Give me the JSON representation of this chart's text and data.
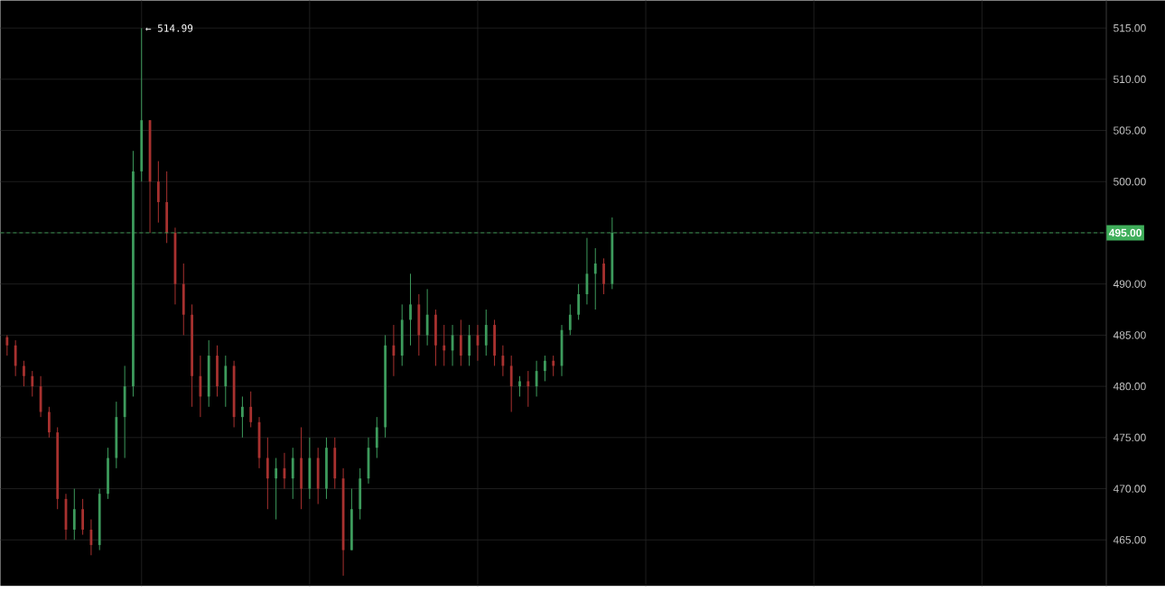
{
  "chart_data": {
    "type": "candlestick",
    "categories": [
      null,
      null,
      null,
      null,
      null,
      null,
      null,
      null,
      null,
      null,
      null,
      null,
      null,
      null,
      null,
      null,
      null,
      null,
      null,
      null,
      null,
      null,
      null,
      null,
      null,
      null,
      null,
      null,
      null,
      null,
      null,
      null,
      null,
      null,
      null,
      null,
      null,
      null,
      null,
      null,
      null,
      null,
      null,
      null,
      null,
      null,
      null,
      null,
      null,
      null,
      null,
      null,
      null,
      null,
      null,
      null,
      null,
      null,
      null,
      null,
      null,
      null,
      null,
      null,
      null,
      null,
      null,
      null,
      null,
      null,
      null,
      null,
      null,
      null,
      null,
      null,
      null,
      null,
      null,
      null,
      null,
      null,
      null,
      null,
      null,
      null,
      null,
      null,
      null,
      null,
      null,
      null,
      null,
      null,
      null,
      null,
      null,
      null,
      null,
      null,
      null,
      null,
      null,
      null,
      null,
      null,
      null,
      null,
      null,
      null,
      null,
      null,
      null,
      null,
      null,
      null,
      null,
      null,
      null,
      null,
      null,
      null,
      null,
      null,
      null,
      null,
      null,
      null,
      null,
      null,
      null
    ],
    "ohlc": [
      [
        484.8,
        485,
        483,
        484
      ],
      [
        484,
        484.5,
        481,
        482
      ],
      [
        482,
        482.5,
        480,
        481
      ],
      [
        481,
        481.5,
        479,
        480
      ],
      [
        480,
        481,
        477,
        477.5
      ],
      [
        477.5,
        478,
        475,
        475.5
      ],
      [
        475.5,
        476,
        468,
        469
      ],
      [
        469,
        469.5,
        465,
        466
      ],
      [
        466,
        470,
        465,
        468
      ],
      [
        468,
        469,
        465.5,
        466
      ],
      [
        466,
        467,
        463.5,
        464.5
      ],
      [
        464.5,
        470,
        464,
        469.5
      ],
      [
        469.5,
        474,
        469,
        473
      ],
      [
        473,
        478.5,
        472,
        477
      ],
      [
        477,
        482,
        473,
        480
      ],
      [
        480,
        503,
        479,
        501
      ],
      [
        501,
        514.99,
        500,
        506
      ],
      [
        506,
        506,
        495,
        500
      ],
      [
        500,
        502,
        496,
        498
      ],
      [
        498,
        501,
        494,
        495
      ],
      [
        495,
        495.5,
        488,
        490
      ],
      [
        490,
        492,
        485,
        487
      ],
      [
        487,
        488,
        478,
        481
      ],
      [
        481,
        483,
        477,
        479
      ],
      [
        479,
        484.5,
        478,
        483
      ],
      [
        483,
        484,
        479,
        480
      ],
      [
        480,
        483,
        478,
        482
      ],
      [
        482,
        482.5,
        476,
        477
      ],
      [
        477,
        479,
        475,
        478
      ],
      [
        478,
        479.5,
        476,
        476.5
      ],
      [
        476.5,
        477,
        472,
        473
      ],
      [
        473,
        475,
        468,
        471
      ],
      [
        471,
        473,
        467,
        472
      ],
      [
        472,
        473.5,
        470,
        471
      ],
      [
        471,
        474,
        469,
        473
      ],
      [
        473,
        476,
        468,
        470
      ],
      [
        470,
        475,
        469,
        473
      ],
      [
        473,
        474,
        468.5,
        470
      ],
      [
        470,
        475,
        469,
        474
      ],
      [
        474,
        475,
        470,
        471
      ],
      [
        471,
        472,
        461.5,
        464
      ],
      [
        464,
        470,
        464,
        468
      ],
      [
        468,
        472,
        467,
        471
      ],
      [
        471,
        475,
        470.5,
        474
      ],
      [
        474,
        477,
        473,
        476
      ],
      [
        476,
        485,
        475,
        484
      ],
      [
        484,
        486,
        481,
        483
      ],
      [
        483,
        488,
        482,
        486.5
      ],
      [
        486.5,
        491,
        484,
        488
      ],
      [
        488,
        489,
        483,
        485
      ],
      [
        485,
        489.5,
        484,
        487
      ],
      [
        487,
        487.5,
        482,
        484
      ],
      [
        484,
        486,
        482,
        483.5
      ],
      [
        483.5,
        486,
        482,
        485
      ],
      [
        485,
        486.5,
        482,
        483
      ],
      [
        483,
        486,
        482,
        485
      ],
      [
        485,
        486,
        482.5,
        484
      ],
      [
        484,
        487.5,
        483,
        486
      ],
      [
        486,
        486.5,
        482,
        483
      ],
      [
        483,
        484,
        481,
        482
      ],
      [
        482,
        483,
        477.5,
        480
      ],
      [
        480,
        481,
        479,
        480.5
      ],
      [
        480.5,
        481.5,
        478,
        480
      ],
      [
        480,
        482.5,
        479,
        481.5
      ],
      [
        481.5,
        483,
        480.5,
        482.5
      ],
      [
        482.5,
        483,
        481,
        482
      ],
      [
        482,
        486,
        481,
        485.5
      ],
      [
        485.5,
        488,
        485,
        487
      ],
      [
        487,
        490,
        486.5,
        489
      ],
      [
        489,
        494.5,
        488,
        491
      ],
      [
        491,
        493.5,
        487.5,
        492
      ],
      [
        492,
        492.5,
        489,
        490
      ],
      [
        490,
        496.5,
        489.5,
        495
      ],
      null,
      null,
      null,
      null,
      null,
      null,
      null,
      null,
      null,
      null,
      null,
      null,
      null,
      null,
      null,
      null,
      null,
      null,
      null,
      null,
      null,
      null,
      null,
      null,
      null,
      null,
      null,
      null,
      null,
      null,
      null,
      null,
      null,
      null,
      null,
      null,
      null,
      null,
      null,
      null,
      null,
      null,
      null,
      null,
      null,
      null,
      null,
      null,
      null,
      null,
      null,
      null,
      null,
      null,
      null,
      null,
      null,
      null
    ],
    "colors": [
      "#a8312f",
      "#a8312f",
      "#a8312f",
      "#a8312f",
      "#a8312f",
      "#a8312f",
      "#a8312f",
      "#a8312f",
      "#3d9b5c",
      "#a8312f",
      "#a8312f",
      "#3d9b5c",
      "#3d9b5c",
      "#3d9b5c",
      "#3d9b5c",
      "#3d9b5c",
      "#3d9b5c",
      "#a8312f",
      "#a8312f",
      "#a8312f",
      "#a8312f",
      "#a8312f",
      "#a8312f",
      "#a8312f",
      "#3d9b5c",
      "#a8312f",
      "#3d9b5c",
      "#a8312f",
      "#3d9b5c",
      "#a8312f",
      "#a8312f",
      "#a8312f",
      "#3d9b5c",
      "#a8312f",
      "#3d9b5c",
      "#a8312f",
      "#3d9b5c",
      "#a8312f",
      "#3d9b5c",
      "#a8312f",
      "#a8312f",
      "#3d9b5c",
      "#3d9b5c",
      "#3d9b5c",
      "#3d9b5c",
      "#3d9b5c",
      "#a8312f",
      "#3d9b5c",
      "#3d9b5c",
      "#a8312f",
      "#3d9b5c",
      "#a8312f",
      "#a8312f",
      "#3d9b5c",
      "#a8312f",
      "#3d9b5c",
      "#a8312f",
      "#3d9b5c",
      "#a8312f",
      "#a8312f",
      "#a8312f",
      "#3d9b5c",
      "#a8312f",
      "#3d9b5c",
      "#3d9b5c",
      "#a8312f",
      "#3d9b5c",
      "#3d9b5c",
      "#3d9b5c",
      "#3d9b5c",
      "#3d9b5c",
      "#a8312f",
      "#3d9b5c",
      null,
      null,
      null,
      null,
      null,
      null,
      null,
      null,
      null,
      null,
      null,
      null,
      null,
      null,
      null,
      null,
      null,
      null,
      null,
      null,
      null,
      null,
      null,
      null,
      null,
      null,
      null,
      null,
      null,
      null,
      null,
      null,
      null,
      null,
      null,
      null,
      null,
      null,
      null,
      null,
      null,
      null,
      null,
      null,
      null,
      null,
      null,
      null,
      null,
      null,
      null,
      null,
      null,
      null,
      null,
      null,
      null,
      null
    ],
    "ylim": [
      460.5,
      517.7
    ],
    "yticks": [
      {
        "value": 465,
        "label": "465.00"
      },
      {
        "value": 470,
        "label": "470.00"
      },
      {
        "value": 475,
        "label": "475.00"
      },
      {
        "value": 480,
        "label": "480.00"
      },
      {
        "value": 485,
        "label": "485.00"
      },
      {
        "value": 490,
        "label": "490.00"
      },
      {
        "value": 495,
        "label": null
      },
      {
        "value": 500,
        "label": "500.00"
      },
      {
        "value": 505,
        "label": "505.00"
      },
      {
        "value": 510,
        "label": "510.00"
      },
      {
        "value": 515,
        "label": "515.00"
      }
    ],
    "tick_labels": "y",
    "grid": true,
    "ref_lines": [
      {
        "axis": "y",
        "value": 495,
        "label": "495.00",
        "color": "#3fae5a",
        "line_style": "dashed"
      }
    ],
    "annotations": [
      "← 514.99"
    ]
  }
}
